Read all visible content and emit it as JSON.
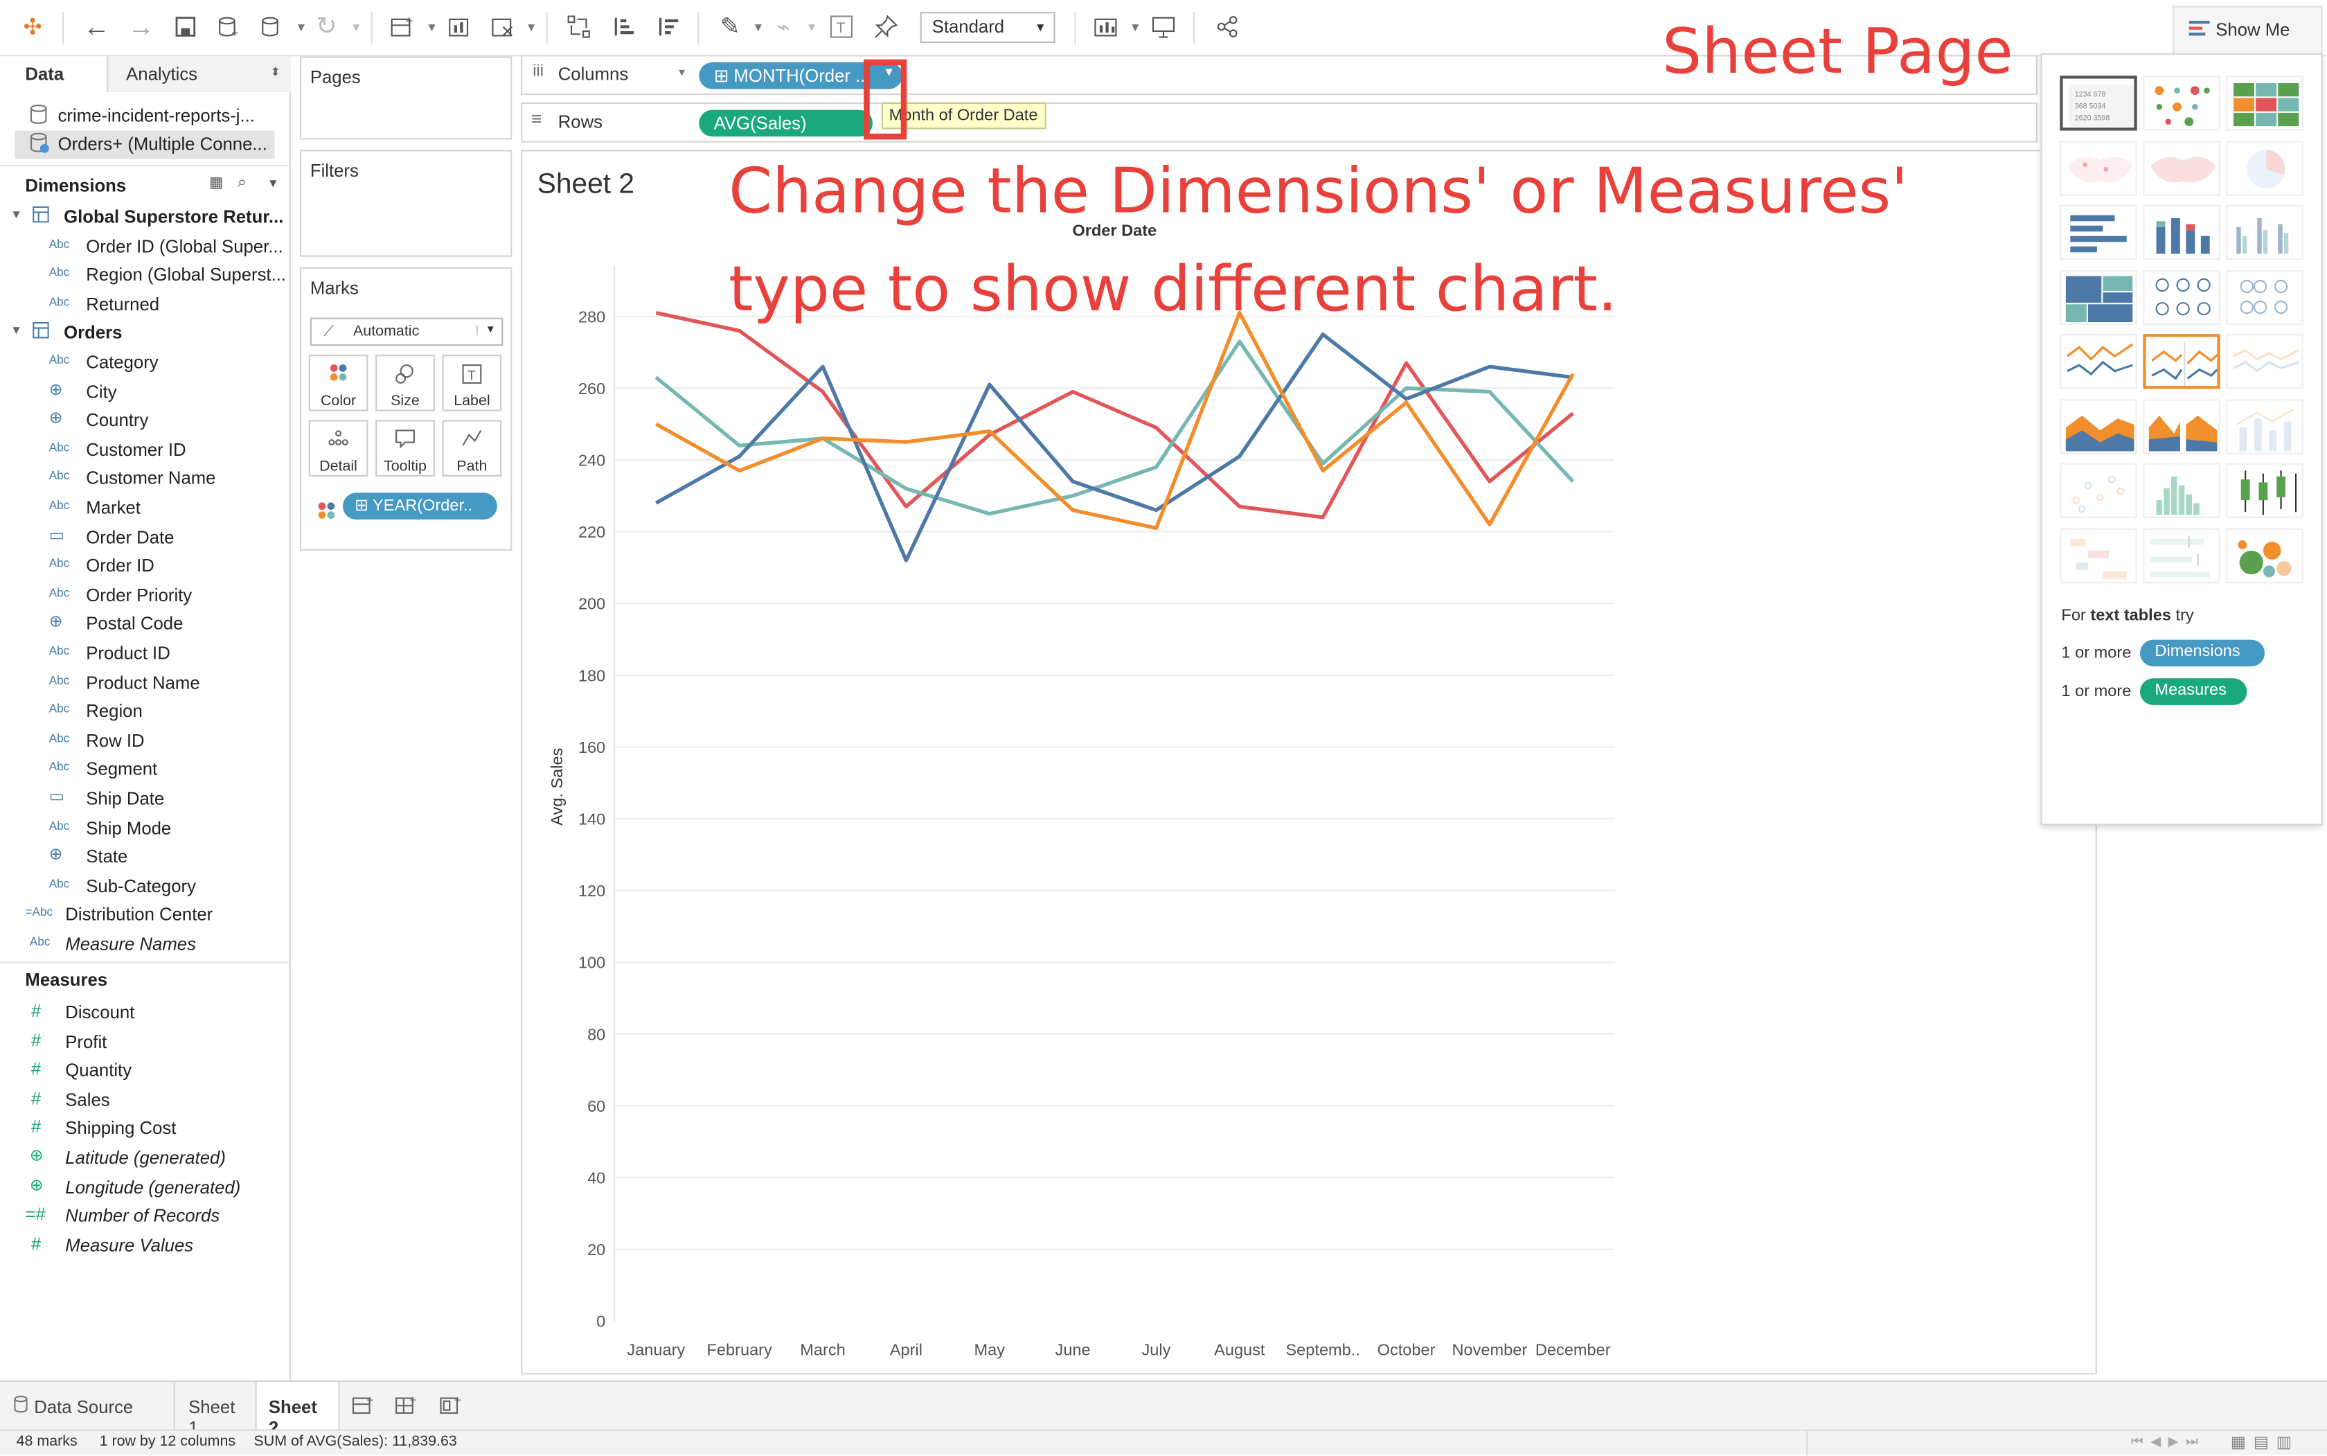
{
  "toolbar": {
    "view_size": "Standard"
  },
  "data_pane": {
    "tab_data": "Data",
    "tab_analytics": "Analytics",
    "sources": [
      "crime-incident-reports-j...",
      "Orders+ (Multiple Conne..."
    ],
    "dimensions_header": "Dimensions",
    "groups": [
      {
        "name": "Global Superstore Retur...",
        "fields": [
          {
            "type": "Abc",
            "name": "Order ID (Global Super..."
          },
          {
            "type": "Abc",
            "name": "Region (Global Superst..."
          },
          {
            "type": "Abc",
            "name": "Returned"
          }
        ]
      },
      {
        "name": "Orders",
        "fields": [
          {
            "type": "Abc",
            "name": "Category"
          },
          {
            "type": "globe",
            "name": "City"
          },
          {
            "type": "globe",
            "name": "Country"
          },
          {
            "type": "Abc",
            "name": "Customer ID"
          },
          {
            "type": "Abc",
            "name": "Customer Name"
          },
          {
            "type": "Abc",
            "name": "Market"
          },
          {
            "type": "date",
            "name": "Order Date"
          },
          {
            "type": "Abc",
            "name": "Order ID"
          },
          {
            "type": "Abc",
            "name": "Order Priority"
          },
          {
            "type": "globe",
            "name": "Postal Code"
          },
          {
            "type": "Abc",
            "name": "Product ID"
          },
          {
            "type": "Abc",
            "name": "Product Name"
          },
          {
            "type": "Abc",
            "name": "Region"
          },
          {
            "type": "Abc",
            "name": "Row ID"
          },
          {
            "type": "Abc",
            "name": "Segment"
          },
          {
            "type": "date",
            "name": "Ship Date"
          },
          {
            "type": "Abc",
            "name": "Ship Mode"
          },
          {
            "type": "globe",
            "name": "State"
          },
          {
            "type": "Abc",
            "name": "Sub-Category"
          }
        ]
      }
    ],
    "extra_dimensions": [
      {
        "type": "=Abc",
        "name": "Distribution Center"
      },
      {
        "type": "Abc",
        "name": "Measure Names"
      }
    ],
    "measures_header": "Measures",
    "measures": [
      {
        "type": "#",
        "name": "Discount"
      },
      {
        "type": "#",
        "name": "Profit"
      },
      {
        "type": "#",
        "name": "Quantity"
      },
      {
        "type": "#",
        "name": "Sales"
      },
      {
        "type": "#",
        "name": "Shipping Cost"
      },
      {
        "type": "globe",
        "name": "Latitude (generated)"
      },
      {
        "type": "globe",
        "name": "Longitude (generated)"
      },
      {
        "type": "=#",
        "name": "Number of Records"
      },
      {
        "type": "#",
        "name": "Measure Values"
      }
    ]
  },
  "cards": {
    "pages": "Pages",
    "filters": "Filters",
    "marks": "Marks",
    "mark_type": "Automatic",
    "mark_buttons": [
      "Color",
      "Size",
      "Label",
      "Detail",
      "Tooltip",
      "Path"
    ],
    "color_pill": "YEAR(Order.."
  },
  "shelves": {
    "columns_label": "Columns",
    "columns_pill": "MONTH(Order ..",
    "rows_label": "Rows",
    "rows_pill": "AVG(Sales)"
  },
  "tooltip": "Month of Order Date",
  "sheet_title": "Sheet 2",
  "show_me": {
    "title": "Show Me",
    "hint_prefix": "For ",
    "hint_bold": "text tables",
    "hint_suffix": " try",
    "req1_prefix": "1 or more",
    "req1_pill": "Dimensions",
    "req2_prefix": "1 or more",
    "req2_pill": "Measures"
  },
  "annotations": {
    "sheet_page": "Sheet Page",
    "line1": "Change the Dimensions' or Measures'",
    "line2": "type to show different chart."
  },
  "bottom_tabs": [
    "Data Source",
    "Sheet 1",
    "Sheet 2"
  ],
  "status": {
    "marks": "48 marks",
    "layout": "1 row by 12 columns",
    "sum": "SUM of AVG(Sales): 11,839.63"
  },
  "chart_data": {
    "type": "line",
    "title": "Order Date",
    "xlabel": "",
    "ylabel": "Avg. Sales",
    "ylim": [
      0,
      290
    ],
    "yticks": [
      0,
      20,
      40,
      60,
      80,
      100,
      120,
      140,
      160,
      180,
      200,
      220,
      240,
      260,
      280
    ],
    "categories": [
      "January",
      "February",
      "March",
      "April",
      "May",
      "June",
      "July",
      "August",
      "Septemb..",
      "October",
      "November",
      "December"
    ],
    "series": [
      {
        "color": "#e15759",
        "values": [
          281,
          276,
          259,
          227,
          247,
          259,
          249,
          227,
          224,
          267,
          234,
          253
        ]
      },
      {
        "color": "#76b7b2",
        "values": [
          263,
          244,
          246,
          232,
          225,
          230,
          238,
          273,
          239,
          260,
          259,
          234
        ]
      },
      {
        "color": "#4e79a7",
        "values": [
          228,
          241,
          266,
          212,
          261,
          234,
          226,
          241,
          275,
          257,
          266,
          263
        ]
      },
      {
        "color": "#f28e2b",
        "values": [
          250,
          237,
          246,
          245,
          248,
          226,
          221,
          281,
          237,
          256,
          222,
          264
        ]
      }
    ],
    "grid": true
  }
}
